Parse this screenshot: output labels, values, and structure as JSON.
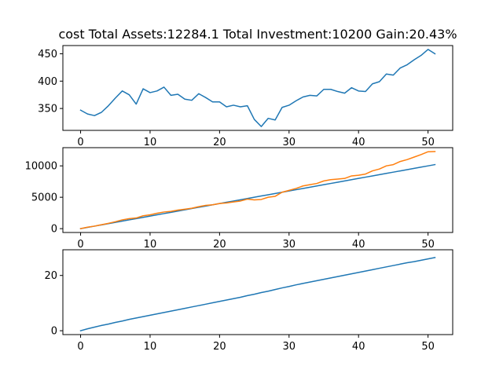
{
  "chart_data": {
    "type": "line",
    "title": "cost Total Assets:12284.1  Total Investment:10200  Gain:20.43%",
    "x": [
      0,
      1,
      2,
      3,
      4,
      5,
      6,
      7,
      8,
      9,
      10,
      11,
      12,
      13,
      14,
      15,
      16,
      17,
      18,
      19,
      20,
      21,
      22,
      23,
      24,
      25,
      26,
      27,
      28,
      29,
      30,
      31,
      32,
      33,
      34,
      35,
      36,
      37,
      38,
      39,
      40,
      41,
      42,
      43,
      44,
      45,
      46,
      47,
      48,
      49,
      50,
      51
    ],
    "subplots": [
      {
        "ylim": [
          310,
          465
        ],
        "xlim": [
          -2.55,
          53.55
        ],
        "xticks": [
          0,
          10,
          20,
          30,
          40,
          50
        ],
        "yticks": [
          350,
          400,
          450
        ],
        "series": [
          {
            "color": "#1f77b4",
            "values": [
              347,
              340,
              337,
              343,
              355,
              369,
              382,
              375,
              358,
              386,
              379,
              382,
              389,
              374,
              376,
              367,
              365,
              377,
              370,
              362,
              362,
              353,
              356,
              353,
              355,
              330,
              317,
              332,
              329,
              352,
              356,
              364,
              371,
              374,
              373,
              385,
              385,
              381,
              378,
              388,
              382,
              381,
              395,
              399,
              413,
              411,
              424,
              430,
              439,
              447,
              458,
              450
            ]
          }
        ]
      },
      {
        "ylim": [
          -610,
          12900
        ],
        "xlim": [
          -2.55,
          53.55
        ],
        "xticks": [
          0,
          10,
          20,
          30,
          40,
          50
        ],
        "yticks": [
          0,
          5000,
          10000
        ],
        "series": [
          {
            "color": "#1f77b4",
            "values": [
              0,
              200,
              400,
              600,
              800,
              1000,
              1200,
              1400,
              1600,
              1800,
              2000,
              2200,
              2400,
              2600,
              2800,
              3000,
              3200,
              3400,
              3600,
              3800,
              4000,
              4200,
              4400,
              4600,
              4800,
              5000,
              5200,
              5400,
              5600,
              5800,
              6000,
              6200,
              6400,
              6600,
              6800,
              7000,
              7200,
              7400,
              7600,
              7800,
              8000,
              8200,
              8400,
              8600,
              8800,
              9000,
              9200,
              9400,
              9600,
              9800,
              10000,
              10200
            ]
          },
          {
            "color": "#ff7f0e",
            "values": [
              0,
              230,
              400,
              630,
              850,
              1100,
              1400,
              1600,
              1700,
              2050,
              2200,
              2450,
              2650,
              2750,
              2950,
              3100,
              3250,
              3500,
              3700,
              3800,
              4000,
              4100,
              4250,
              4400,
              4700,
              4580,
              4650,
              5000,
              5150,
              5800,
              6100,
              6400,
              6800,
              7000,
              7200,
              7600,
              7800,
              7900,
              8000,
              8400,
              8500,
              8700,
              9200,
              9500,
              10000,
              10200,
              10700,
              11000,
              11400,
              11800,
              12250,
              12284.1
            ]
          }
        ]
      },
      {
        "ylim": [
          -1.4,
          29.3
        ],
        "xlim": [
          -2.55,
          53.55
        ],
        "xticks": [
          0,
          10,
          20,
          30,
          40,
          50
        ],
        "yticks": [
          0,
          20
        ],
        "series": [
          {
            "color": "#1f77b4",
            "values": [
              0,
              0.7,
              1.3,
              1.9,
              2.4,
              3.0,
              3.5,
              4.1,
              4.6,
              5.1,
              5.6,
              6.1,
              6.6,
              7.1,
              7.6,
              8.1,
              8.6,
              9.1,
              9.6,
              10.1,
              10.6,
              11.1,
              11.6,
              12.1,
              12.7,
              13.2,
              13.8,
              14.3,
              14.9,
              15.5,
              16.0,
              16.6,
              17.1,
              17.6,
              18.1,
              18.6,
              19.1,
              19.6,
              20.1,
              20.6,
              21.1,
              21.6,
              22.1,
              22.6,
              23.1,
              23.6,
              24.1,
              24.6,
              25.0,
              25.5,
              26.0,
              26.5
            ]
          }
        ]
      }
    ]
  }
}
